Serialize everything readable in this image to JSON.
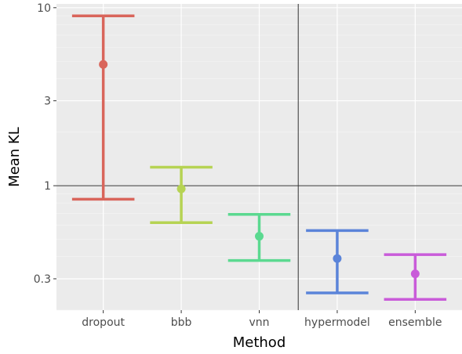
{
  "chart_data": {
    "type": "errorbar",
    "xlabel": "Method",
    "ylabel": "Mean KL",
    "y_scale": "log10",
    "ylim": [
      0.2,
      10.5
    ],
    "yticks": [
      {
        "value": 0.3,
        "label": "0.3"
      },
      {
        "value": 1,
        "label": "1"
      },
      {
        "value": 3,
        "label": "3"
      },
      {
        "value": 10,
        "label": "10"
      }
    ],
    "categories": [
      "dropout",
      "bbb",
      "vnn",
      "hypermodel",
      "ensemble"
    ],
    "points": [
      {
        "name": "dropout",
        "mean": 4.8,
        "lower": 0.84,
        "upper": 9.0,
        "color": "#d9655b"
      },
      {
        "name": "bbb",
        "mean": 0.96,
        "lower": 0.62,
        "upper": 1.27,
        "color": "#b6d353"
      },
      {
        "name": "vnn",
        "mean": 0.52,
        "lower": 0.38,
        "upper": 0.69,
        "color": "#5bd990"
      },
      {
        "name": "hypermodel",
        "mean": 0.39,
        "lower": 0.25,
        "upper": 0.56,
        "color": "#5b84d9"
      },
      {
        "name": "ensemble",
        "mean": 0.32,
        "lower": 0.23,
        "upper": 0.41,
        "color": "#c95bd9"
      }
    ],
    "hline": 1,
    "vline_after": "bbb",
    "vline_after_category": "vnn",
    "grid": true,
    "legend": "none"
  }
}
